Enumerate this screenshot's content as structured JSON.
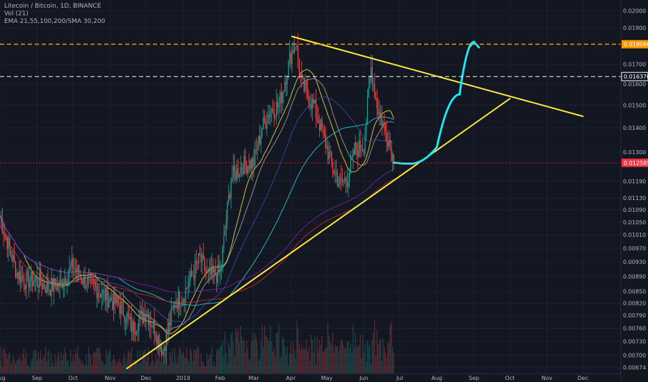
{
  "legend": {
    "symbol_line": "Litecoin / Bitcoin, 1D, BINANCE",
    "volume_line": "Vol (21)",
    "ma_line": "EMA 21,55,100,200/SMA 30,200"
  },
  "colors": {
    "background": "#131722",
    "grid": "#1e2230",
    "text": "#b2b5be",
    "up": "#26a69a",
    "down": "#ef5350",
    "trendline": "#ffeb3b",
    "projection": "#1de9f6",
    "resistance": "#ff9800",
    "price_tag": "#f23645"
  },
  "chart_data": {
    "type": "candlestick",
    "symbol": "Litecoin / Bitcoin",
    "interval": "1D",
    "exchange": "BINANCE",
    "y_ticks": [
      "0.02000",
      "0.01900",
      "0.01700",
      "0.01600",
      "0.01500",
      "0.01400",
      "0.01300",
      "0.01190",
      "0.01130",
      "0.01090",
      "0.01050",
      "0.01010",
      "0.00970",
      "0.00930",
      "0.00890",
      "0.00850",
      "0.00820",
      "0.00790",
      "0.00760",
      "0.00730",
      "0.00700",
      "0.00674"
    ],
    "y_tick_values": [
      0.02,
      0.019,
      0.017,
      0.016,
      0.015,
      0.014,
      0.013,
      0.0119,
      0.0113,
      0.0109,
      0.0105,
      0.0101,
      0.0097,
      0.0093,
      0.0089,
      0.0085,
      0.0082,
      0.0079,
      0.0076,
      0.0073,
      0.007,
      0.00674
    ],
    "ylim": [
      0.0067,
      0.0205
    ],
    "y_scale": "log",
    "x_ticks": [
      "Aug",
      "Sep",
      "Oct",
      "Nov",
      "Dec",
      "2019",
      "Feb",
      "Mar",
      "Apr",
      "May",
      "Jun",
      "Jul",
      "Aug",
      "Sep",
      "Oct",
      "Nov",
      "Dec"
    ],
    "x_tick_dates": [
      "2018-08-01",
      "2018-09-01",
      "2018-10-01",
      "2018-11-01",
      "2018-12-01",
      "2019-01-01",
      "2019-02-01",
      "2019-03-01",
      "2019-04-01",
      "2019-05-01",
      "2019-06-01",
      "2019-07-01",
      "2019-08-01",
      "2019-09-01",
      "2019-10-01",
      "2019-11-01",
      "2019-12-01"
    ],
    "x_range": [
      "2018-08-01",
      "2019-12-31"
    ],
    "price_labels": [
      {
        "value": "0.018066",
        "color": "#ff9800",
        "style": "dashed"
      },
      {
        "value": "0.016370",
        "color": "#ffffff",
        "style": "dashed"
      },
      {
        "value": "0.012585",
        "color": "#f23645",
        "style": "dotted"
      }
    ],
    "candles_path": [
      [
        "2018-08-01",
        0.0107
      ],
      [
        "2018-08-08",
        0.0098
      ],
      [
        "2018-08-15",
        0.009
      ],
      [
        "2018-08-22",
        0.0088
      ],
      [
        "2018-09-01",
        0.0088
      ],
      [
        "2018-09-10",
        0.0086
      ],
      [
        "2018-09-20",
        0.0087
      ],
      [
        "2018-10-01",
        0.0092
      ],
      [
        "2018-10-10",
        0.0088
      ],
      [
        "2018-10-20",
        0.0086
      ],
      [
        "2018-11-01",
        0.0083
      ],
      [
        "2018-11-10",
        0.0081
      ],
      [
        "2018-11-20",
        0.0076
      ],
      [
        "2018-12-01",
        0.008
      ],
      [
        "2018-12-08",
        0.0076
      ],
      [
        "2018-12-15",
        0.0071
      ],
      [
        "2018-12-25",
        0.0082
      ],
      [
        "2019-01-01",
        0.0084
      ],
      [
        "2019-01-08",
        0.0089
      ],
      [
        "2019-01-15",
        0.0094
      ],
      [
        "2019-01-22",
        0.0089
      ],
      [
        "2019-02-01",
        0.009
      ],
      [
        "2019-02-10",
        0.012
      ],
      [
        "2019-02-20",
        0.0125
      ],
      [
        "2019-03-01",
        0.0126
      ],
      [
        "2019-03-08",
        0.014
      ],
      [
        "2019-03-15",
        0.0148
      ],
      [
        "2019-03-22",
        0.015
      ],
      [
        "2019-04-01",
        0.0175
      ],
      [
        "2019-04-05",
        0.0182
      ],
      [
        "2019-04-10",
        0.016
      ],
      [
        "2019-04-20",
        0.015
      ],
      [
        "2019-04-28",
        0.0137
      ],
      [
        "2019-05-05",
        0.0125
      ],
      [
        "2019-05-12",
        0.0118
      ],
      [
        "2019-05-18",
        0.012
      ],
      [
        "2019-05-25",
        0.0131
      ],
      [
        "2019-06-01",
        0.0133
      ],
      [
        "2019-06-07",
        0.0168
      ],
      [
        "2019-06-12",
        0.015
      ],
      [
        "2019-06-18",
        0.014
      ],
      [
        "2019-06-22",
        0.0135
      ],
      [
        "2019-06-26",
        0.0126
      ]
    ],
    "drawings": {
      "support_line": [
        [
          "2018-11-15",
          0.00672
        ],
        [
          "2019-10-01",
          0.0153
        ]
      ],
      "resistance_line": [
        [
          "2019-04-02",
          0.0185
        ],
        [
          "2019-12-01",
          0.0145
        ]
      ],
      "projection_curve": [
        [
          "2019-06-26",
          0.01259
        ],
        [
          "2019-07-10",
          0.01255
        ],
        [
          "2019-08-01",
          0.0132
        ],
        [
          "2019-08-20",
          0.0155
        ],
        [
          "2019-09-01",
          0.0182
        ]
      ]
    }
  }
}
